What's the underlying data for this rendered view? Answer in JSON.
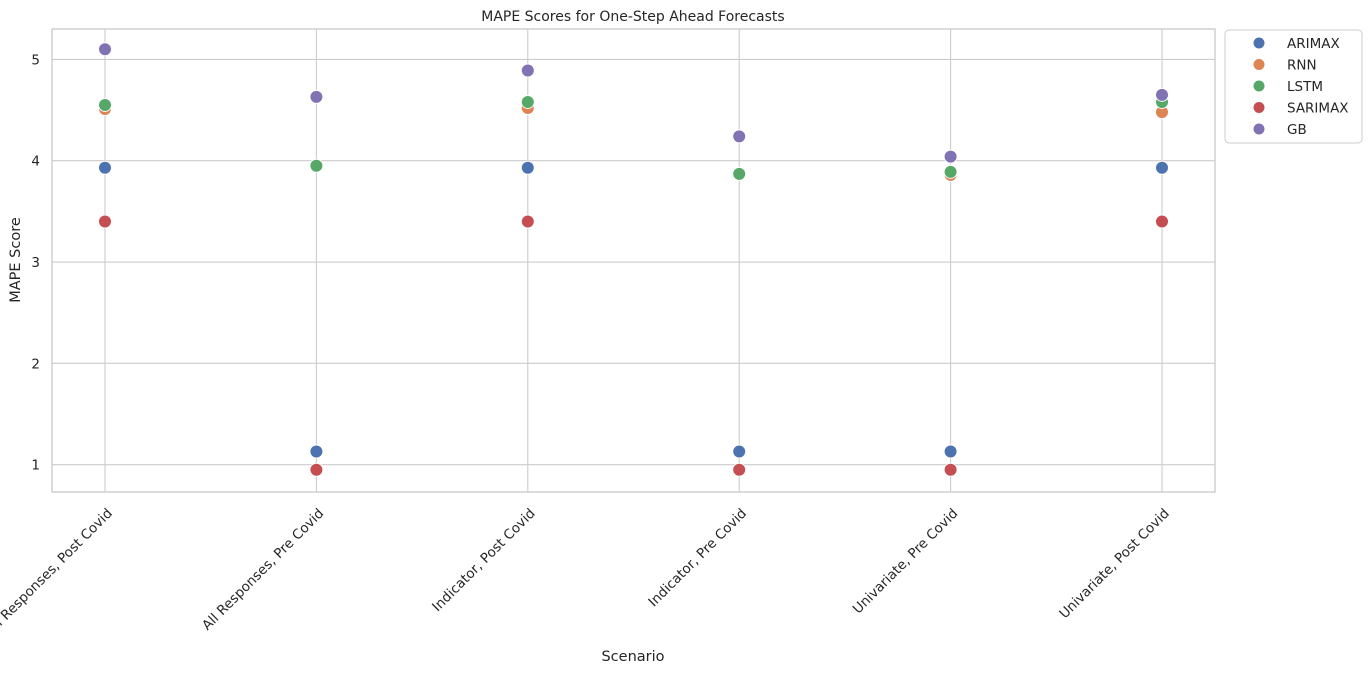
{
  "chart_data": {
    "type": "scatter",
    "title": "MAPE Scores for One-Step Ahead Forecasts",
    "xlabel": "Scenario",
    "ylabel": "MAPE Score",
    "categories": [
      "All Responses, Post Covid",
      "All Responses, Pre Covid",
      "Indicator, Post Covid",
      "Indicator, Pre Covid",
      "Univariate, Pre Covid",
      "Univariate, Post Covid"
    ],
    "ylim": [
      0.73,
      5.3
    ],
    "yticks": [
      1,
      2,
      3,
      4,
      5
    ],
    "grid": true,
    "legend_position": "outside-top-right",
    "series": [
      {
        "name": "ARIMAX",
        "color": "#4c72b0",
        "values": [
          3.93,
          1.13,
          3.93,
          1.13,
          1.13,
          3.93
        ]
      },
      {
        "name": "RNN",
        "color": "#dd8452",
        "values": [
          4.51,
          3.95,
          4.52,
          3.87,
          3.86,
          4.48
        ]
      },
      {
        "name": "LSTM",
        "color": "#55a868",
        "values": [
          4.55,
          3.95,
          4.58,
          3.87,
          3.89,
          4.58
        ]
      },
      {
        "name": "SARIMAX",
        "color": "#c44e52",
        "values": [
          3.4,
          0.95,
          3.4,
          0.95,
          0.95,
          3.4
        ]
      },
      {
        "name": "GB",
        "color": "#8172b3",
        "values": [
          5.1,
          4.63,
          4.89,
          4.24,
          4.04,
          4.65
        ]
      }
    ]
  }
}
